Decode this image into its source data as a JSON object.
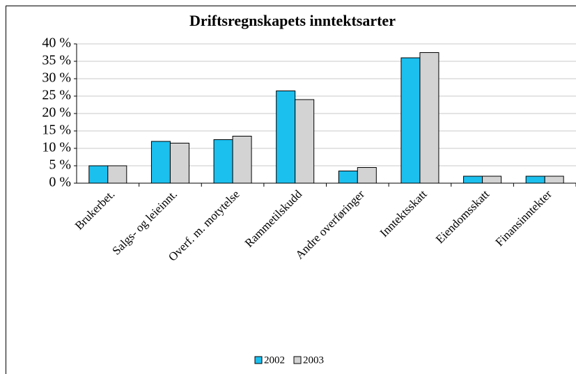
{
  "chart_data": {
    "type": "bar",
    "title": "Driftsregnskapets inntektsarter",
    "categories": [
      "Brukerbet.",
      "Salgs- og leieinnt.",
      "Overf. m. motytelse",
      "Rammetilskudd",
      "Andre overføringer",
      "Inntektsskatt",
      "Eiendomsskatt",
      "Finansinntekter"
    ],
    "series": [
      {
        "name": "2002",
        "color": "#1cc0ef",
        "values": [
          5,
          12,
          12.5,
          26.5,
          3.5,
          36,
          2,
          2
        ]
      },
      {
        "name": "2003",
        "color": "#d3d3d3",
        "values": [
          5,
          11.5,
          13.5,
          24,
          4.5,
          37.5,
          2,
          2
        ]
      }
    ],
    "ylim": [
      0,
      40
    ],
    "yticks": [
      {
        "value": 0,
        "label": "0 %"
      },
      {
        "value": 5,
        "label": "5 %"
      },
      {
        "value": 10,
        "label": "10 %"
      },
      {
        "value": 15,
        "label": "15 %"
      },
      {
        "value": 20,
        "label": "20 %"
      },
      {
        "value": 25,
        "label": "25 %"
      },
      {
        "value": 30,
        "label": "30 %"
      },
      {
        "value": 35,
        "label": "35 %"
      },
      {
        "value": 40,
        "label": "40 %"
      }
    ],
    "grid": true,
    "legend": "bottom"
  }
}
